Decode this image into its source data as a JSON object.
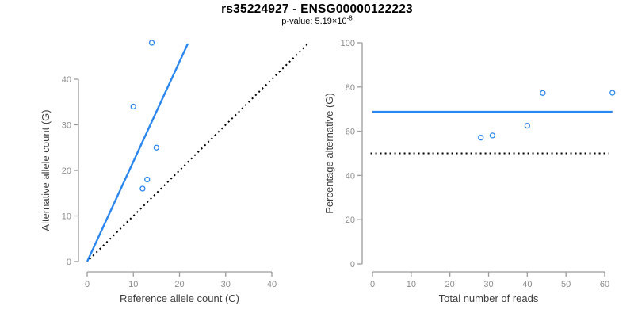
{
  "header": {
    "title": "rs35224927 - ENSG00000122223",
    "p_value_base": "p-value: 5.19×10",
    "p_value_exponent": "-8"
  },
  "colors": {
    "accent_blue": "#2b87ee",
    "dotted_black": "#000000",
    "axis_line": "#9c9c9c",
    "tick_label": "#8c8c8c",
    "axis_title": "#3f3f3f",
    "title_text": "#141414",
    "subtitle_text": "#9a9a9a"
  },
  "chart_data": [
    {
      "type": "scatter",
      "name": "allele-counts",
      "xlabel": "Reference allele count (C)",
      "ylabel": "Alternative allele count (G)",
      "xticks": [
        0,
        10,
        20,
        30,
        40
      ],
      "yticks": [
        0,
        10,
        20,
        30,
        40
      ],
      "xlim": [
        -2,
        49
      ],
      "ylim": [
        -2,
        49
      ],
      "grid": false,
      "legend": "none",
      "points": [
        [
          12,
          16
        ],
        [
          13,
          18
        ],
        [
          15,
          25
        ],
        [
          10,
          34
        ],
        [
          14,
          48
        ]
      ],
      "lines": [
        {
          "name": "fit-line",
          "style": "solid",
          "color_key": "accent_blue",
          "from": [
            0,
            0
          ],
          "to": [
            21.8,
            47.8
          ]
        },
        {
          "name": "identity-line",
          "style": "dotted",
          "color_key": "dotted_black",
          "from": [
            0.5,
            0.5
          ],
          "to": [
            47.8,
            47.8
          ]
        }
      ]
    },
    {
      "type": "scatter",
      "name": "percentage-vs-reads",
      "xlabel": "Total number of reads",
      "ylabel": "Percentage alternative (G)",
      "xticks": [
        0,
        10,
        20,
        30,
        40,
        50,
        60
      ],
      "yticks": [
        0,
        20,
        40,
        60,
        80,
        100
      ],
      "xlim": [
        -2.5,
        64.5
      ],
      "ylim": [
        -4,
        104
      ],
      "grid": false,
      "legend": "none",
      "points": [
        [
          28,
          57.1
        ],
        [
          31,
          58.1
        ],
        [
          40,
          62.5
        ],
        [
          44,
          77.3
        ],
        [
          62,
          77.4
        ]
      ],
      "lines": [
        {
          "name": "mean-line",
          "style": "solid",
          "color_key": "accent_blue",
          "from": [
            0,
            68.8
          ],
          "to": [
            62,
            68.8
          ]
        },
        {
          "name": "null-line",
          "style": "dotted",
          "color_key": "dotted_black",
          "from": [
            -0.5,
            50
          ],
          "to": [
            61,
            50
          ]
        }
      ]
    }
  ]
}
